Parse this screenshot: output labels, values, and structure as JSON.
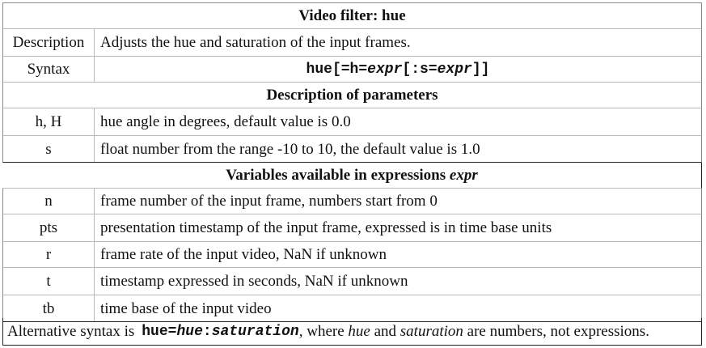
{
  "title": "Video filter: hue",
  "description": {
    "label": "Description",
    "text": "Adjusts the hue and saturation of the input frames."
  },
  "syntax": {
    "label": "Syntax",
    "prefix": "hue[=h=",
    "expr1": "expr",
    "middle": "[:s=",
    "expr2": "expr",
    "suffix": "]]"
  },
  "params_heading": "Description of parameters",
  "params": [
    {
      "name": "h, H",
      "text": "hue angle in degrees, default value is 0.0"
    },
    {
      "name": "s",
      "text": "float number from the range -10 to 10, the default value is 1.0"
    }
  ],
  "vars_heading": {
    "text": "Variables available in expressions ",
    "expr": "expr"
  },
  "vars": [
    {
      "name": "n",
      "text": "frame number of the input frame, numbers start from 0"
    },
    {
      "name": "pts",
      "text": "presentation timestamp of the input frame, expressed is in time base units"
    },
    {
      "name": "r",
      "text": "frame rate of the input video, NaN if unknown"
    },
    {
      "name": "t",
      "text": "timestamp expressed in seconds, NaN if unknown"
    },
    {
      "name": "tb",
      "text": "time base of the input video"
    }
  ],
  "footer": {
    "lead": "Alternative syntax is",
    "code_prefix": "hue=",
    "code_hue": "hue",
    "code_colon": ":",
    "code_sat": "saturation",
    "after1": ", where ",
    "em1": "hue",
    "after2": " and ",
    "em2": "saturation",
    "after3": " are numbers, not expressions."
  }
}
